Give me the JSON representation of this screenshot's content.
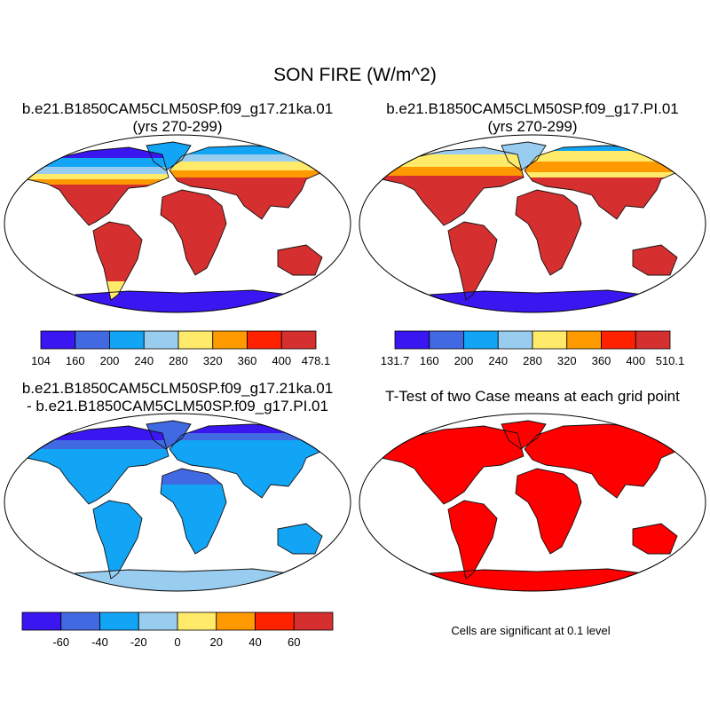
{
  "figure": {
    "title": "SON FIRE (W/m^2)"
  },
  "panels": [
    {
      "id": "case1",
      "title_line1": "b.e21.B1850CAM5CLM50SP.f09_g17.21ka.01",
      "title_line2": "(yrs 270-299)",
      "colorbar": {
        "colors": [
          "#3a16f0",
          "#4169e1",
          "#12a4f5",
          "#99cdf0",
          "#ffea6a",
          "#ff9900",
          "#ff2200",
          "#d62f2f"
        ],
        "labels": [
          "104",
          "160",
          "200",
          "240",
          "280",
          "320",
          "360",
          "400",
          "478.1"
        ]
      }
    },
    {
      "id": "case2",
      "title_line1": "b.e21.B1850CAM5CLM50SP.f09_g17.PI.01",
      "title_line2": "(yrs 270-299)",
      "colorbar": {
        "colors": [
          "#3a16f0",
          "#4169e1",
          "#12a4f5",
          "#99cdf0",
          "#ffea6a",
          "#ff9900",
          "#ff2200",
          "#d62f2f"
        ],
        "labels": [
          "131.7",
          "160",
          "200",
          "240",
          "280",
          "320",
          "360",
          "400",
          "510.1"
        ]
      }
    },
    {
      "id": "diff",
      "title_line1": "b.e21.B1850CAM5CLM50SP.f09_g17.21ka.01",
      "title_line2": "- b.e21.B1850CAM5CLM50SP.f09_g17.PI.01",
      "colorbar": {
        "colors": [
          "#3a16f0",
          "#4169e1",
          "#12a4f5",
          "#99cdf0",
          "#ffea6a",
          "#ff9900",
          "#ff2200",
          "#d62f2f"
        ],
        "labels": [
          "-60",
          "-40",
          "-20",
          "0",
          "20",
          "40",
          "60"
        ]
      }
    },
    {
      "id": "ttest",
      "title_line1": "T-Test of two Case means at each grid point",
      "note": "Cells are significant at 0.1 level"
    }
  ]
}
